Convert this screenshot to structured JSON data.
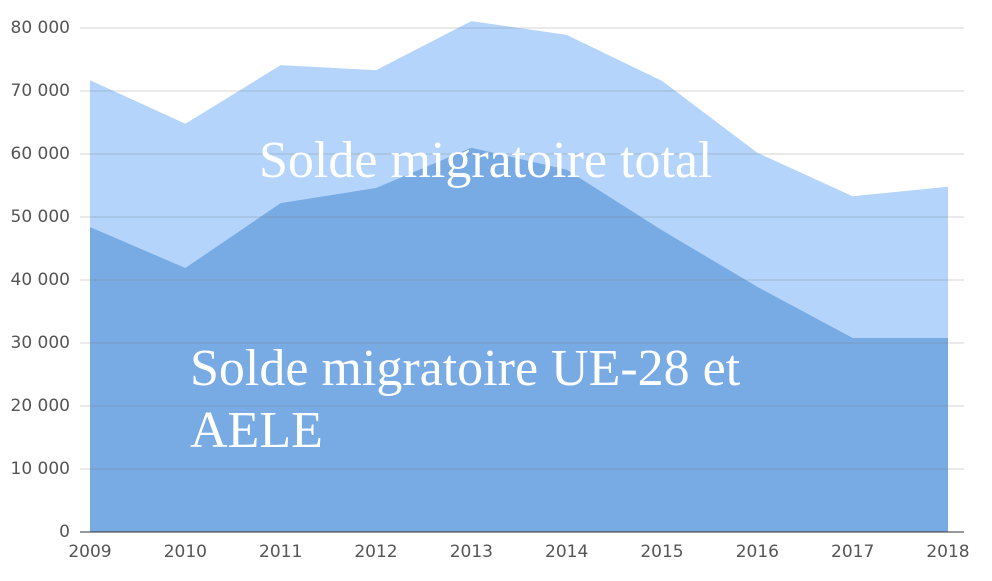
{
  "chart_data": {
    "type": "area",
    "categories": [
      "2009",
      "2010",
      "2011",
      "2012",
      "2013",
      "2014",
      "2015",
      "2016",
      "2017",
      "2018"
    ],
    "series": [
      {
        "name": "Solde migratoire total",
        "color": "#b4d4fb",
        "values": [
          71700,
          64800,
          74100,
          73300,
          81100,
          78900,
          71600,
          60200,
          53300,
          54800
        ]
      },
      {
        "name": "Solde migratoire UE-28 et AELE",
        "color": "#78aae3",
        "values": [
          48400,
          41900,
          52200,
          54600,
          61000,
          57500,
          47900,
          38900,
          30800,
          30800
        ]
      }
    ],
    "ylim": [
      0,
      80000
    ],
    "yticks": [
      0,
      {
        "value": 10000,
        "label": "10 000"
      },
      {
        "value": 20000,
        "label": "20 000"
      },
      {
        "value": 30000,
        "label": "30 000"
      },
      {
        "value": 40000,
        "label": "40 000"
      },
      {
        "value": 50000,
        "label": "50 000"
      },
      {
        "value": 60000,
        "label": "60 000"
      },
      {
        "value": 70000,
        "label": "70 000"
      },
      {
        "value": 80000,
        "label": "80 000"
      }
    ],
    "grid": true
  }
}
